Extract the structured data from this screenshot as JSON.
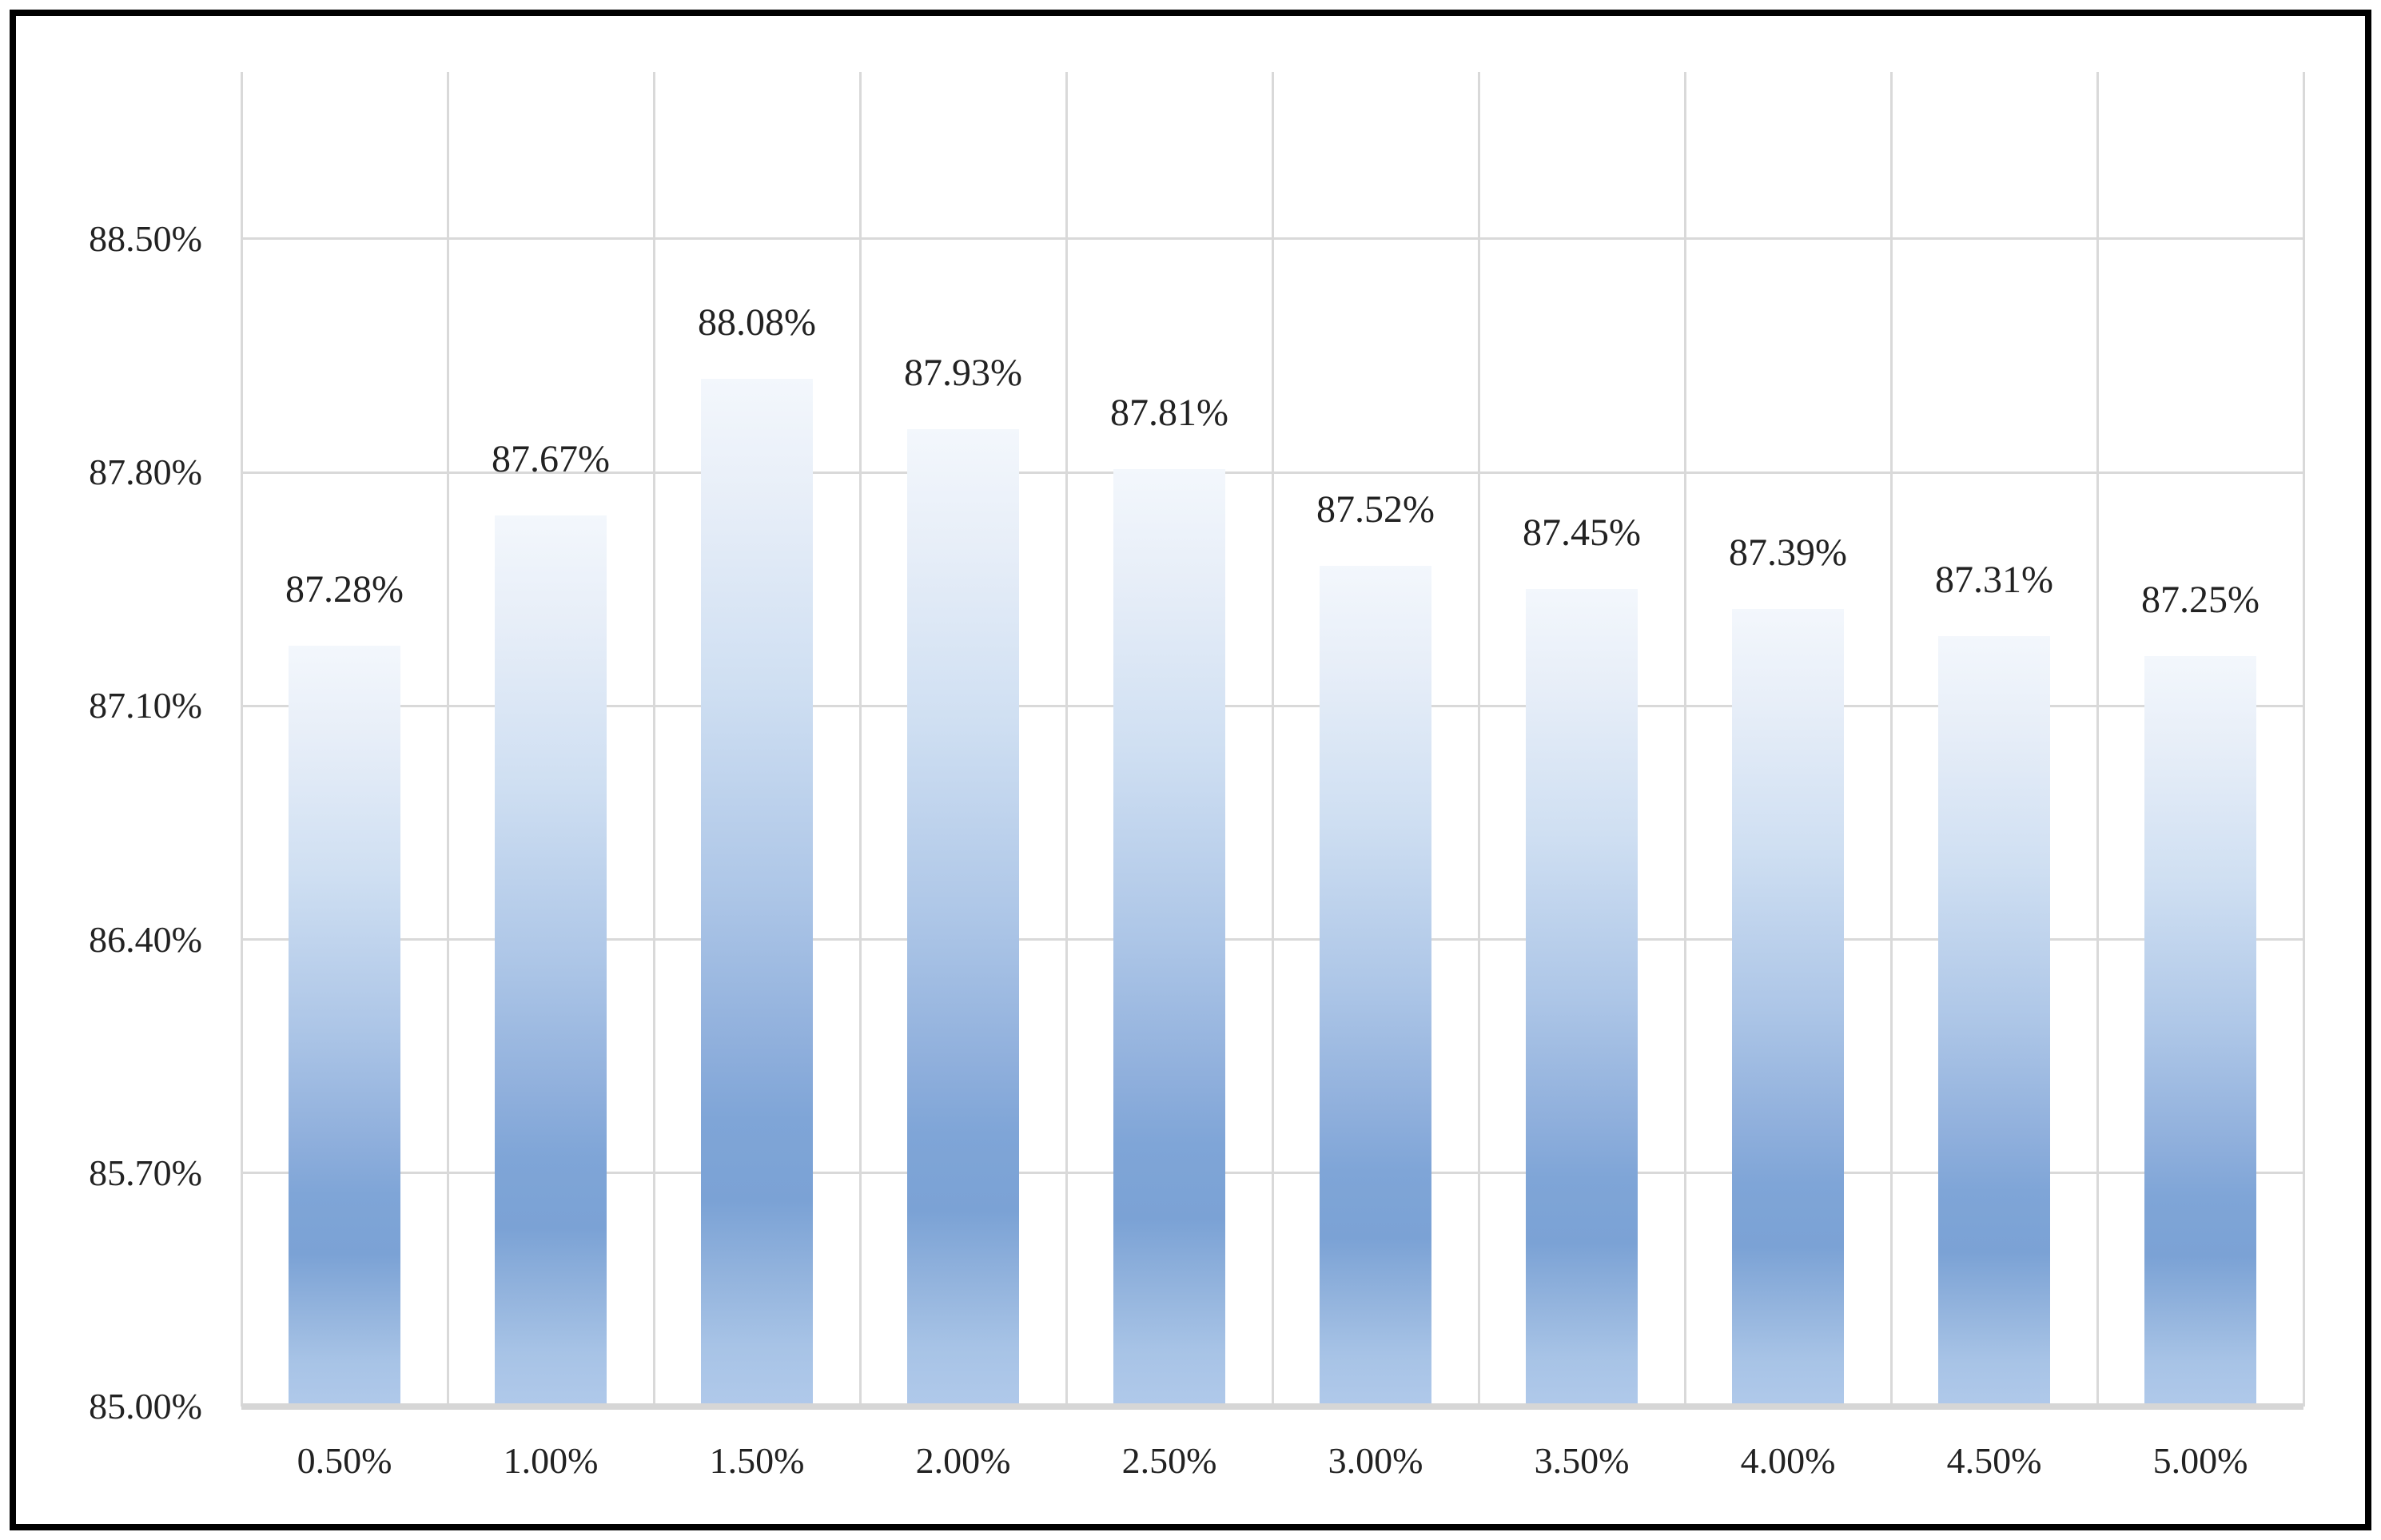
{
  "chart_data": {
    "type": "bar",
    "title": "",
    "xlabel": "",
    "ylabel": "",
    "categories": [
      "0.50%",
      "1.00%",
      "1.50%",
      "2.00%",
      "2.50%",
      "3.00%",
      "3.50%",
      "4.00%",
      "4.50%",
      "5.00%"
    ],
    "values": [
      87.28,
      87.67,
      88.08,
      87.93,
      87.81,
      87.52,
      87.45,
      87.39,
      87.31,
      87.25
    ],
    "data_labels": [
      "87.28%",
      "87.67%",
      "88.08%",
      "87.93%",
      "87.81%",
      "87.52%",
      "87.45%",
      "87.39%",
      "87.31%",
      "87.25%"
    ],
    "ylim": [
      85.0,
      89.0
    ],
    "y_major_unit": 0.7,
    "y_ticks": [
      {
        "value": 88.5,
        "label": "88.50%"
      },
      {
        "value": 87.8,
        "label": "87.80%"
      },
      {
        "value": 87.1,
        "label": "87.10%"
      },
      {
        "value": 86.4,
        "label": "86.40%"
      },
      {
        "value": 85.7,
        "label": "85.70%"
      },
      {
        "value": 85.0,
        "label": "85.00%"
      }
    ],
    "grid": {
      "horizontal": true,
      "vertical": true
    },
    "legend": "none",
    "style": {
      "background": "#ffffff",
      "border_color": "#000000",
      "gridline_color": "#d9d9d9",
      "axis_line_color": "#d6d6d6",
      "text_color": "#222222",
      "bar_gradient_colors": [
        "#f3f7fc",
        "#e7eef8",
        "#cfdff2",
        "#adc6e7",
        "#8fafdc",
        "#7fa5d7",
        "#7ba2d5",
        "#95b5de",
        "#a7c3e6",
        "#b0c9ea"
      ],
      "bar_gradient_stops": [
        0,
        12,
        30,
        50,
        65,
        72,
        80,
        88,
        94,
        100
      ]
    }
  }
}
